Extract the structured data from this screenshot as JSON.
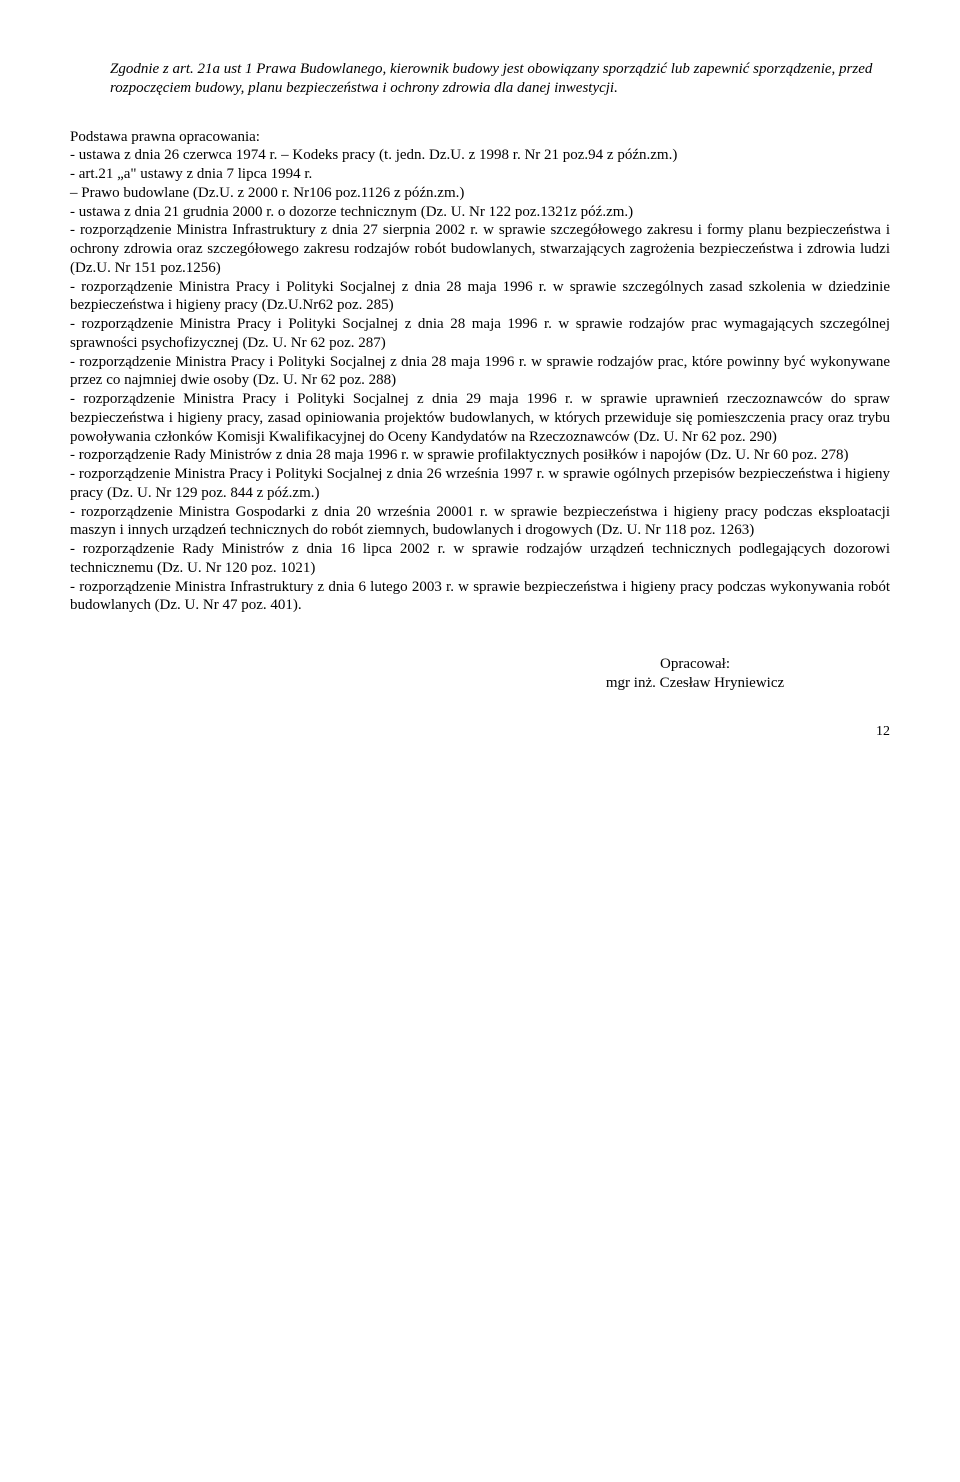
{
  "intro": {
    "text": "Zgodnie z art. 21a ust 1 Prawa Budowlanego, kierownik budowy jest obowiązany sporządzić lub zapewnić sporządzenie, przed rozpoczęciem budowy, planu bezpieczeństwa i ochrony zdrowia dla danej inwestycji."
  },
  "body": {
    "line1": " Podstawa prawna opracowania:",
    "line2": "- ustawa z dnia 26 czerwca 1974 r. – Kodeks pracy (t. jedn. Dz.U. z 1998 r. Nr 21 poz.94 z późn.zm.)",
    "line3": "- art.21 „a\" ustawy z dnia 7 lipca 1994 r.",
    "line4": "– Prawo budowlane (Dz.U. z 2000 r. Nr106 poz.1126 z późn.zm.)",
    "line5": "- ustawa z dnia 21 grudnia 2000 r. o dozorze technicznym (Dz. U. Nr 122 poz.1321z póź.zm.)",
    "line6": "- rozporządzenie Ministra Infrastruktury z dnia 27 sierpnia 2002 r. w sprawie szczegółowego zakresu i formy planu bezpieczeństwa i ochrony zdrowia oraz szczegółowego zakresu rodzajów robót budowlanych, stwarzających zagrożenia bezpieczeństwa i zdrowia ludzi (Dz.U. Nr 151 poz.1256)",
    "line7": "- rozporządzenie Ministra Pracy i Polityki Socjalnej z dnia 28 maja 1996 r. w sprawie szczególnych zasad szkolenia w dziedzinie bezpieczeństwa i higieny pracy (Dz.U.Nr62 poz. 285)",
    "line8": "- rozporządzenie Ministra Pracy i Polityki Socjalnej z dnia 28 maja 1996 r. w sprawie rodzajów prac wymagających szczególnej sprawności psychofizycznej (Dz. U. Nr 62 poz. 287)",
    "line9": "- rozporządzenie Ministra Pracy i Polityki Socjalnej z dnia 28 maja 1996 r. w sprawie rodzajów prac, które powinny być wykonywane przez co najmniej dwie osoby (Dz. U. Nr 62 poz. 288)",
    "line10": "- rozporządzenie Ministra Pracy i Polityki Socjalnej z dnia 29 maja 1996 r. w sprawie uprawnień rzeczoznawców do spraw bezpieczeństwa i higieny pracy, zasad opiniowania projektów budowlanych, w których przewiduje się pomieszczenia pracy oraz trybu powoływania członków Komisji Kwalifikacyjnej do Oceny Kandydatów na Rzeczoznawców (Dz. U. Nr 62 poz. 290)",
    "line11": "- rozporządzenie Rady Ministrów z dnia 28 maja 1996 r. w sprawie profilaktycznych posiłków i napojów (Dz. U. Nr 60 poz. 278)",
    "line12": "- rozporządzenie Ministra Pracy i Polityki Socjalnej z dnia 26 września 1997 r. w sprawie ogólnych przepisów bezpieczeństwa i higieny pracy (Dz. U. Nr 129 poz. 844 z póź.zm.)",
    "line13": "- rozporządzenie Ministra Gospodarki z dnia 20 września 20001 r. w sprawie bezpieczeństwa i higieny pracy podczas eksploatacji maszyn i innych urządzeń technicznych do robót ziemnych, budowlanych i drogowych (Dz. U. Nr 118 poz. 1263)",
    "line14": "- rozporządzenie Rady Ministrów z dnia 16 lipca 2002 r. w sprawie rodzajów urządzeń technicznych podlegających dozorowi technicznemu (Dz. U. Nr 120 poz. 1021)",
    "line15": "- rozporządzenie Ministra Infrastruktury z dnia 6 lutego 2003 r. w sprawie bezpieczeństwa i higieny pracy podczas wykonywania robót budowlanych (Dz. U. Nr 47 poz. 401)."
  },
  "signature": {
    "role": "Opracował:",
    "name": "mgr inż. Czesław Hryniewicz"
  },
  "pageNumber": "12"
}
